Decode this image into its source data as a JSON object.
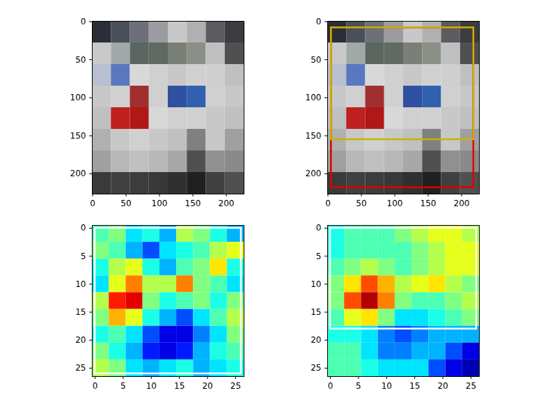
{
  "chart_data": [
    {
      "type": "image",
      "x_edges": [
        -0.5,
        27.875,
        56.25,
        84.625,
        113,
        141.375,
        169.75,
        198.125,
        226.5
      ],
      "y_edges": [
        -0.5,
        27.875,
        56.25,
        84.625,
        113,
        141.375,
        169.75,
        198.125,
        226.5
      ],
      "pixels": [
        [
          "#2b2e36",
          "#4a4f5a",
          "#6d7078",
          "#9a9ca0",
          "#c8c8c8",
          "#b0b0b0",
          "#5a5c60",
          "#3a3c40"
        ],
        [
          "#c9c9c9",
          "#a0a8a8",
          "#5c6660",
          "#606a62",
          "#7a8078",
          "#8a9088",
          "#c0c0c0",
          "#505050"
        ],
        [
          "#b8c0d0",
          "#5a78c0",
          "#d8d8d8",
          "#d0d0d0",
          "#c8c8c8",
          "#d0d0d0",
          "#cfcfcf",
          "#c0c0c0"
        ],
        [
          "#c8c8c8",
          "#d0d0d0",
          "#a03030",
          "#d0d0d0",
          "#3050a0",
          "#3060b0",
          "#d0d0d0",
          "#c8c8c8"
        ],
        [
          "#c0c0c0",
          "#c02020",
          "#b01818",
          "#d8d8d8",
          "#d0d0d0",
          "#d0d0d0",
          "#c8c8c8",
          "#c0c0c0"
        ],
        [
          "#b0b0b0",
          "#c8c8c8",
          "#d0d0d0",
          "#c8c8c8",
          "#c0c0c0",
          "#808080",
          "#c8c8c8",
          "#a0a0a0"
        ],
        [
          "#a0a0a0",
          "#b8b8b8",
          "#c0c0c0",
          "#b8b8b8",
          "#a8a8a8",
          "#505050",
          "#909090",
          "#8a8a8a"
        ],
        [
          "#3a3a3a",
          "#404040",
          "#3c3c3c",
          "#383838",
          "#303030",
          "#202020",
          "#404040",
          "#505050"
        ]
      ],
      "xlim": [
        -0.5,
        226.5
      ],
      "ylim": [
        226.5,
        -0.5
      ],
      "xticks": [
        0,
        50,
        100,
        150,
        200
      ],
      "yticks": [
        0,
        50,
        100,
        150,
        200
      ],
      "boxes": []
    },
    {
      "type": "image",
      "x_edges": [
        -0.5,
        27.875,
        56.25,
        84.625,
        113,
        141.375,
        169.75,
        198.125,
        226.5
      ],
      "y_edges": [
        -0.5,
        27.875,
        56.25,
        84.625,
        113,
        141.375,
        169.75,
        198.125,
        226.5
      ],
      "pixels": [
        [
          "#2b2e36",
          "#4a4f5a",
          "#6d7078",
          "#9a9ca0",
          "#c8c8c8",
          "#b0b0b0",
          "#5a5c60",
          "#3a3c40"
        ],
        [
          "#c9c9c9",
          "#a0a8a8",
          "#5c6660",
          "#606a62",
          "#7a8078",
          "#8a9088",
          "#c0c0c0",
          "#505050"
        ],
        [
          "#b8c0d0",
          "#5a78c0",
          "#d8d8d8",
          "#d0d0d0",
          "#c8c8c8",
          "#d0d0d0",
          "#cfcfcf",
          "#c0c0c0"
        ],
        [
          "#c8c8c8",
          "#d0d0d0",
          "#a03030",
          "#d0d0d0",
          "#3050a0",
          "#3060b0",
          "#d0d0d0",
          "#c8c8c8"
        ],
        [
          "#c0c0c0",
          "#c02020",
          "#b01818",
          "#d8d8d8",
          "#d0d0d0",
          "#d0d0d0",
          "#c8c8c8",
          "#c0c0c0"
        ],
        [
          "#b0b0b0",
          "#c8c8c8",
          "#d0d0d0",
          "#c8c8c8",
          "#c0c0c0",
          "#808080",
          "#c8c8c8",
          "#a0a0a0"
        ],
        [
          "#a0a0a0",
          "#b8b8b8",
          "#c0c0c0",
          "#b8b8b8",
          "#a8a8a8",
          "#505050",
          "#909090",
          "#8a8a8a"
        ],
        [
          "#3a3a3a",
          "#404040",
          "#3c3c3c",
          "#383838",
          "#303030",
          "#202020",
          "#404040",
          "#505050"
        ]
      ],
      "xlim": [
        -0.5,
        226.5
      ],
      "ylim": [
        226.5,
        -0.5
      ],
      "xticks": [
        0,
        50,
        100,
        150,
        200
      ],
      "yticks": [
        0,
        50,
        100,
        150,
        200
      ],
      "boxes": [
        {
          "x1": 5,
          "y1": 8,
          "x2": 218,
          "y2": 218,
          "color": "#e00000"
        },
        {
          "x1": 5,
          "y1": 8,
          "x2": 218,
          "y2": 155,
          "color": "#c8b400"
        }
      ]
    },
    {
      "type": "heatmap",
      "x_edges": [
        -0.5,
        2.5,
        5.5,
        8.5,
        11.5,
        14.5,
        17.5,
        20.5,
        23.5,
        26.5
      ],
      "y_edges": [
        -0.5,
        2.5,
        5.5,
        8.5,
        11.5,
        14.5,
        17.5,
        20.5,
        23.5,
        26.5
      ],
      "cells": [
        [
          0.45,
          0.5,
          0.35,
          0.4,
          0.3,
          0.55,
          0.5,
          0.4,
          0.3
        ],
        [
          0.5,
          0.45,
          0.3,
          0.2,
          0.35,
          0.4,
          0.45,
          0.55,
          0.6
        ],
        [
          0.4,
          0.55,
          0.6,
          0.4,
          0.3,
          0.45,
          0.5,
          0.65,
          0.4
        ],
        [
          0.35,
          0.6,
          0.75,
          0.55,
          0.55,
          0.75,
          0.5,
          0.45,
          0.35
        ],
        [
          0.55,
          0.85,
          0.9,
          0.5,
          0.4,
          0.45,
          0.5,
          0.4,
          0.5
        ],
        [
          0.5,
          0.7,
          0.6,
          0.4,
          0.3,
          0.2,
          0.35,
          0.45,
          0.55
        ],
        [
          0.4,
          0.45,
          0.35,
          0.2,
          0.1,
          0.1,
          0.25,
          0.35,
          0.5
        ],
        [
          0.5,
          0.4,
          0.3,
          0.15,
          0.1,
          0.15,
          0.3,
          0.4,
          0.45
        ],
        [
          0.55,
          0.5,
          0.35,
          0.3,
          0.35,
          0.4,
          0.3,
          0.35,
          0.4
        ]
      ],
      "clim": [
        0,
        1
      ],
      "xlim": [
        -0.5,
        26.5
      ],
      "ylim": [
        26.5,
        -0.5
      ],
      "xticks": [
        0,
        5,
        10,
        15,
        20,
        25
      ],
      "yticks": [
        0,
        5,
        10,
        15,
        20,
        25
      ],
      "boxes": [
        {
          "x1": 0,
          "y1": 0,
          "x2": 26,
          "y2": 26,
          "color": "#ffffff"
        }
      ]
    },
    {
      "type": "heatmap",
      "x_edges": [
        -0.5,
        2.5,
        5.5,
        8.5,
        11.5,
        14.5,
        17.5,
        20.5,
        23.5,
        26.5
      ],
      "y_edges": [
        -0.5,
        2.5,
        5.5,
        8.5,
        11.5,
        14.5,
        17.5,
        20.5,
        23.5,
        26.5
      ],
      "cells": [
        [
          0.4,
          0.45,
          0.45,
          0.45,
          0.5,
          0.55,
          0.6,
          0.6,
          0.55
        ],
        [
          0.4,
          0.45,
          0.45,
          0.45,
          0.45,
          0.5,
          0.55,
          0.6,
          0.6
        ],
        [
          0.45,
          0.5,
          0.55,
          0.5,
          0.45,
          0.5,
          0.55,
          0.6,
          0.6
        ],
        [
          0.5,
          0.65,
          0.8,
          0.7,
          0.55,
          0.6,
          0.65,
          0.55,
          0.5
        ],
        [
          0.5,
          0.8,
          0.95,
          0.75,
          0.5,
          0.45,
          0.45,
          0.5,
          0.55
        ],
        [
          0.45,
          0.6,
          0.65,
          0.5,
          0.35,
          0.35,
          0.4,
          0.45,
          0.5
        ],
        [
          0.4,
          0.4,
          0.35,
          0.25,
          0.2,
          0.25,
          0.3,
          0.3,
          0.3
        ],
        [
          0.45,
          0.45,
          0.35,
          0.25,
          0.25,
          0.3,
          0.3,
          0.2,
          0.1
        ],
        [
          0.45,
          0.45,
          0.4,
          0.35,
          0.35,
          0.35,
          0.2,
          0.1,
          0.05
        ]
      ],
      "clim": [
        0,
        1
      ],
      "xlim": [
        -0.5,
        26.5
      ],
      "ylim": [
        26.5,
        -0.5
      ],
      "xticks": [
        0,
        5,
        10,
        15,
        20,
        25
      ],
      "yticks": [
        0,
        5,
        10,
        15,
        20,
        25
      ],
      "boxes": [
        {
          "x1": 0,
          "y1": 0,
          "x2": 26,
          "y2": 18,
          "color": "#ffffff"
        }
      ]
    }
  ]
}
